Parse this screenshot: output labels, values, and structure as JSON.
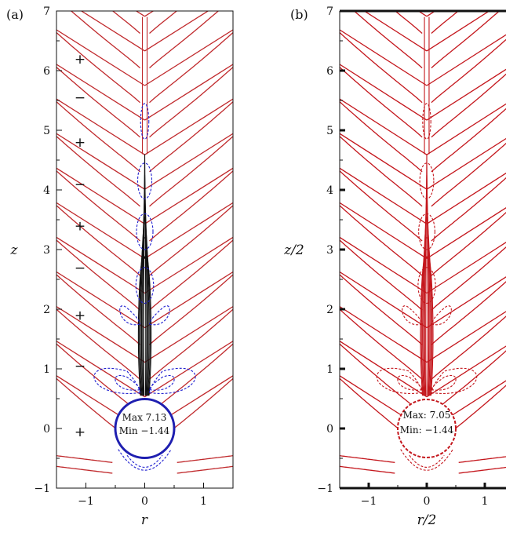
{
  "chart_data": [
    {
      "panel": "(a)",
      "type": "line",
      "xlabel": "r",
      "ylabel": "z",
      "xlim": [
        -1.5,
        1.5
      ],
      "ylim": [
        -1,
        7
      ],
      "xticks": [
        "−1",
        "0",
        "1"
      ],
      "yticks": [
        "−1",
        "0",
        "1",
        "2",
        "3",
        "4",
        "5",
        "6",
        "7"
      ],
      "xtick_values": [
        -1,
        0,
        1
      ],
      "ytick_values": [
        -1,
        0,
        1,
        2,
        3,
        4,
        5,
        6,
        7
      ],
      "annotation": {
        "max_label": "Max 7.13",
        "min_label": "Min −1.44"
      },
      "sign_labels": [
        {
          "text": "+",
          "x": -1.1,
          "z": 6.2
        },
        {
          "text": "−",
          "x": -1.1,
          "z": 5.55
        },
        {
          "text": "+",
          "x": -1.1,
          "z": 4.8
        },
        {
          "text": "−",
          "x": -1.1,
          "z": 4.1
        },
        {
          "text": "+",
          "x": -1.1,
          "z": 3.4
        },
        {
          "text": "−",
          "x": -1.1,
          "z": 2.7
        },
        {
          "text": "+",
          "x": -1.1,
          "z": 1.9
        },
        {
          "text": "−",
          "x": -1.1,
          "z": 1.05
        },
        {
          "text": "+",
          "x": -1.1,
          "z": -0.05
        }
      ],
      "contour_colors": {
        "positive": "#c0292c",
        "negative": "#1f1fd0",
        "core": "#111111",
        "body": "#1f1fb0"
      }
    },
    {
      "panel": "(b)",
      "type": "line",
      "xlabel": "r/2",
      "ylabel": "z/2",
      "xlim": [
        -1.5,
        1.5
      ],
      "ylim": [
        -1,
        7
      ],
      "xticks": [
        "−1",
        "0",
        "1"
      ],
      "yticks": [
        "−1",
        "0",
        "1",
        "2",
        "3",
        "4",
        "5",
        "6",
        "7"
      ],
      "xtick_values": [
        -1,
        0,
        1
      ],
      "ytick_values": [
        -1,
        0,
        1,
        2,
        3,
        4,
        5,
        6,
        7
      ],
      "annotation": {
        "max_label": "Max: 7.05",
        "min_label": "Min: −1.44"
      },
      "contour_colors": {
        "positive": "#c4161c",
        "negative": "#c4161c",
        "core": "#c4161c",
        "body": "#c4161c"
      }
    }
  ]
}
